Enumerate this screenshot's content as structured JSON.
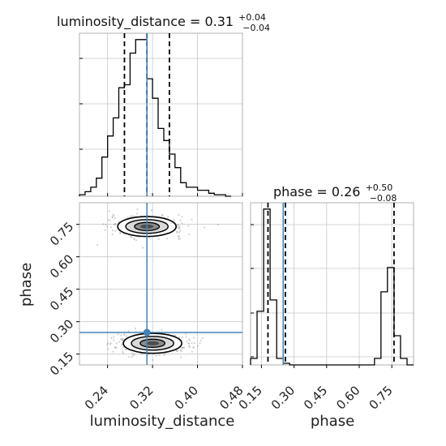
{
  "chart_data": {
    "type": "corner",
    "parameters": [
      "luminosity_distance",
      "phase"
    ],
    "truths": {
      "luminosity_distance": 0.31,
      "phase": 0.25
    },
    "titles": {
      "luminosity_distance": {
        "name": "luminosity_distance",
        "median": "0.31",
        "plus": "+0.04",
        "minus": "−0.04"
      },
      "phase": {
        "name": "phase",
        "median": "0.26",
        "plus": "+0.50",
        "minus": "−0.08"
      }
    },
    "axis_labels": {
      "x_left": "luminosity_distance",
      "x_right": "phase",
      "y": "phase"
    },
    "ticks": {
      "luminosity_distance": [
        "0.24",
        "0.32",
        "0.40",
        "0.48"
      ],
      "phase": [
        "0.15",
        "0.30",
        "0.45",
        "0.60",
        "0.75"
      ]
    },
    "ranges": {
      "luminosity_distance": [
        0.19,
        0.48
      ],
      "phase": [
        0.1,
        0.85
      ]
    },
    "quantile_lines": {
      "luminosity_distance": [
        0.27,
        0.31,
        0.35
      ],
      "phase": [
        0.18,
        0.26,
        0.76
      ]
    },
    "hist_luminosity_distance": {
      "bin_edges": [
        0.19,
        0.2,
        0.21,
        0.22,
        0.23,
        0.24,
        0.25,
        0.26,
        0.27,
        0.28,
        0.29,
        0.3,
        0.31,
        0.32,
        0.33,
        0.34,
        0.35,
        0.36,
        0.37,
        0.38,
        0.39,
        0.4,
        0.41,
        0.42,
        0.43,
        0.44,
        0.45,
        0.46
      ],
      "counts": [
        1,
        3,
        6,
        12,
        26,
        40,
        52,
        72,
        74,
        95,
        104,
        104,
        78,
        65,
        45,
        37,
        28,
        19,
        9,
        6,
        6,
        4,
        4,
        2,
        1,
        1,
        0
      ]
    },
    "hist_phase": {
      "bin_edges": [
        0.1,
        0.13,
        0.16,
        0.19,
        0.22,
        0.25,
        0.28,
        0.31,
        0.34,
        0.37,
        0.4,
        0.43,
        0.46,
        0.49,
        0.52,
        0.55,
        0.58,
        0.61,
        0.64,
        0.67,
        0.7,
        0.73,
        0.76,
        0.79,
        0.82,
        0.85
      ],
      "counts": [
        4,
        33,
        96,
        40,
        4,
        1,
        0,
        0,
        0,
        0,
        0,
        0,
        0,
        0,
        0,
        0,
        0,
        0,
        0,
        4,
        45,
        60,
        18,
        4,
        0
      ]
    },
    "clusters": [
      {
        "luminosity_distance": 0.31,
        "phase": 0.74,
        "sd_x": 0.026,
        "sd_y": 0.022
      },
      {
        "luminosity_distance": 0.32,
        "phase": 0.2,
        "sd_x": 0.026,
        "sd_y": 0.022
      }
    ],
    "grid": true,
    "truth_color": "#4682b4",
    "line_color": "#000000",
    "point_color": "#808080"
  }
}
